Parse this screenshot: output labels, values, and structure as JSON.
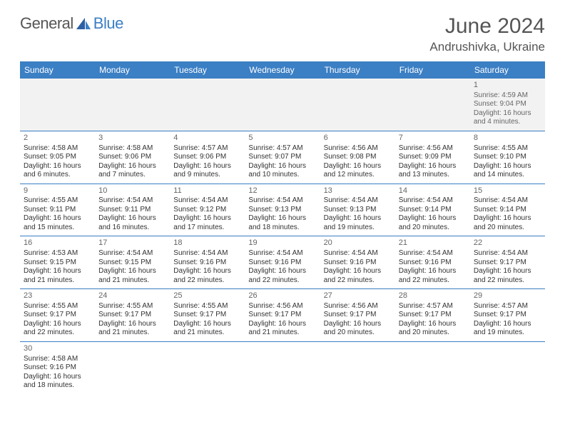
{
  "logo": {
    "text1": "General",
    "text2": "Blue"
  },
  "title": "June 2024",
  "location": "Andrushivka, Ukraine",
  "colors": {
    "header_bg": "#3b7fc4",
    "header_text": "#ffffff",
    "border": "#3b7fc4",
    "muted_row_bg": "#f2f2f2",
    "text": "#333333",
    "title_text": "#555555"
  },
  "day_headers": [
    "Sunday",
    "Monday",
    "Tuesday",
    "Wednesday",
    "Thursday",
    "Friday",
    "Saturday"
  ],
  "weeks": [
    [
      {
        "day": "",
        "lines": []
      },
      {
        "day": "",
        "lines": []
      },
      {
        "day": "",
        "lines": []
      },
      {
        "day": "",
        "lines": []
      },
      {
        "day": "",
        "lines": []
      },
      {
        "day": "",
        "lines": []
      },
      {
        "day": "1",
        "lines": [
          "Sunrise: 4:59 AM",
          "Sunset: 9:04 PM",
          "Daylight: 16 hours",
          "and 4 minutes."
        ]
      }
    ],
    [
      {
        "day": "2",
        "lines": [
          "Sunrise: 4:58 AM",
          "Sunset: 9:05 PM",
          "Daylight: 16 hours",
          "and 6 minutes."
        ]
      },
      {
        "day": "3",
        "lines": [
          "Sunrise: 4:58 AM",
          "Sunset: 9:06 PM",
          "Daylight: 16 hours",
          "and 7 minutes."
        ]
      },
      {
        "day": "4",
        "lines": [
          "Sunrise: 4:57 AM",
          "Sunset: 9:06 PM",
          "Daylight: 16 hours",
          "and 9 minutes."
        ]
      },
      {
        "day": "5",
        "lines": [
          "Sunrise: 4:57 AM",
          "Sunset: 9:07 PM",
          "Daylight: 16 hours",
          "and 10 minutes."
        ]
      },
      {
        "day": "6",
        "lines": [
          "Sunrise: 4:56 AM",
          "Sunset: 9:08 PM",
          "Daylight: 16 hours",
          "and 12 minutes."
        ]
      },
      {
        "day": "7",
        "lines": [
          "Sunrise: 4:56 AM",
          "Sunset: 9:09 PM",
          "Daylight: 16 hours",
          "and 13 minutes."
        ]
      },
      {
        "day": "8",
        "lines": [
          "Sunrise: 4:55 AM",
          "Sunset: 9:10 PM",
          "Daylight: 16 hours",
          "and 14 minutes."
        ]
      }
    ],
    [
      {
        "day": "9",
        "lines": [
          "Sunrise: 4:55 AM",
          "Sunset: 9:11 PM",
          "Daylight: 16 hours",
          "and 15 minutes."
        ]
      },
      {
        "day": "10",
        "lines": [
          "Sunrise: 4:54 AM",
          "Sunset: 9:11 PM",
          "Daylight: 16 hours",
          "and 16 minutes."
        ]
      },
      {
        "day": "11",
        "lines": [
          "Sunrise: 4:54 AM",
          "Sunset: 9:12 PM",
          "Daylight: 16 hours",
          "and 17 minutes."
        ]
      },
      {
        "day": "12",
        "lines": [
          "Sunrise: 4:54 AM",
          "Sunset: 9:13 PM",
          "Daylight: 16 hours",
          "and 18 minutes."
        ]
      },
      {
        "day": "13",
        "lines": [
          "Sunrise: 4:54 AM",
          "Sunset: 9:13 PM",
          "Daylight: 16 hours",
          "and 19 minutes."
        ]
      },
      {
        "day": "14",
        "lines": [
          "Sunrise: 4:54 AM",
          "Sunset: 9:14 PM",
          "Daylight: 16 hours",
          "and 20 minutes."
        ]
      },
      {
        "day": "15",
        "lines": [
          "Sunrise: 4:54 AM",
          "Sunset: 9:14 PM",
          "Daylight: 16 hours",
          "and 20 minutes."
        ]
      }
    ],
    [
      {
        "day": "16",
        "lines": [
          "Sunrise: 4:53 AM",
          "Sunset: 9:15 PM",
          "Daylight: 16 hours",
          "and 21 minutes."
        ]
      },
      {
        "day": "17",
        "lines": [
          "Sunrise: 4:54 AM",
          "Sunset: 9:15 PM",
          "Daylight: 16 hours",
          "and 21 minutes."
        ]
      },
      {
        "day": "18",
        "lines": [
          "Sunrise: 4:54 AM",
          "Sunset: 9:16 PM",
          "Daylight: 16 hours",
          "and 22 minutes."
        ]
      },
      {
        "day": "19",
        "lines": [
          "Sunrise: 4:54 AM",
          "Sunset: 9:16 PM",
          "Daylight: 16 hours",
          "and 22 minutes."
        ]
      },
      {
        "day": "20",
        "lines": [
          "Sunrise: 4:54 AM",
          "Sunset: 9:16 PM",
          "Daylight: 16 hours",
          "and 22 minutes."
        ]
      },
      {
        "day": "21",
        "lines": [
          "Sunrise: 4:54 AM",
          "Sunset: 9:16 PM",
          "Daylight: 16 hours",
          "and 22 minutes."
        ]
      },
      {
        "day": "22",
        "lines": [
          "Sunrise: 4:54 AM",
          "Sunset: 9:17 PM",
          "Daylight: 16 hours",
          "and 22 minutes."
        ]
      }
    ],
    [
      {
        "day": "23",
        "lines": [
          "Sunrise: 4:55 AM",
          "Sunset: 9:17 PM",
          "Daylight: 16 hours",
          "and 22 minutes."
        ]
      },
      {
        "day": "24",
        "lines": [
          "Sunrise: 4:55 AM",
          "Sunset: 9:17 PM",
          "Daylight: 16 hours",
          "and 21 minutes."
        ]
      },
      {
        "day": "25",
        "lines": [
          "Sunrise: 4:55 AM",
          "Sunset: 9:17 PM",
          "Daylight: 16 hours",
          "and 21 minutes."
        ]
      },
      {
        "day": "26",
        "lines": [
          "Sunrise: 4:56 AM",
          "Sunset: 9:17 PM",
          "Daylight: 16 hours",
          "and 21 minutes."
        ]
      },
      {
        "day": "27",
        "lines": [
          "Sunrise: 4:56 AM",
          "Sunset: 9:17 PM",
          "Daylight: 16 hours",
          "and 20 minutes."
        ]
      },
      {
        "day": "28",
        "lines": [
          "Sunrise: 4:57 AM",
          "Sunset: 9:17 PM",
          "Daylight: 16 hours",
          "and 20 minutes."
        ]
      },
      {
        "day": "29",
        "lines": [
          "Sunrise: 4:57 AM",
          "Sunset: 9:17 PM",
          "Daylight: 16 hours",
          "and 19 minutes."
        ]
      }
    ],
    [
      {
        "day": "30",
        "lines": [
          "Sunrise: 4:58 AM",
          "Sunset: 9:16 PM",
          "Daylight: 16 hours",
          "and 18 minutes."
        ]
      },
      {
        "day": "",
        "lines": []
      },
      {
        "day": "",
        "lines": []
      },
      {
        "day": "",
        "lines": []
      },
      {
        "day": "",
        "lines": []
      },
      {
        "day": "",
        "lines": []
      },
      {
        "day": "",
        "lines": []
      }
    ]
  ]
}
